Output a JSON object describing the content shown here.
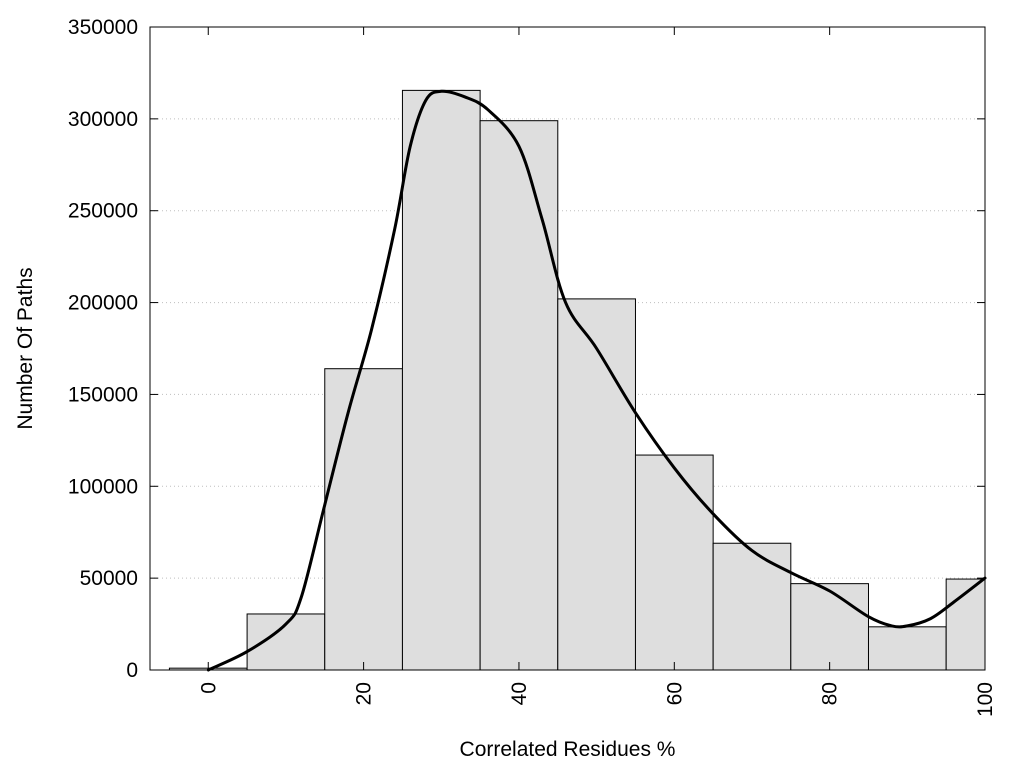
{
  "chart_data": {
    "type": "bar",
    "subtype": "histogram-with-density-curve",
    "title": "",
    "xlabel": "Correlated Residues %",
    "ylabel": "Number Of Paths",
    "xlim": [
      -7.5,
      100
    ],
    "ylim": [
      0,
      350000
    ],
    "x_ticks": [
      0,
      20,
      40,
      60,
      80,
      100
    ],
    "y_ticks": [
      0,
      50000,
      100000,
      150000,
      200000,
      250000,
      300000,
      350000
    ],
    "grid": "horizontal-dotted",
    "bar_color": "#dedede",
    "bar_edge_color": "#000000",
    "curve_color": "#000000",
    "bins": [
      {
        "left": -5,
        "right": 5,
        "value": 1000
      },
      {
        "left": 5,
        "right": 15,
        "value": 30500
      },
      {
        "left": 15,
        "right": 25,
        "value": 164000
      },
      {
        "left": 25,
        "right": 35,
        "value": 315500
      },
      {
        "left": 35,
        "right": 45,
        "value": 299000
      },
      {
        "left": 45,
        "right": 55,
        "value": 202000
      },
      {
        "left": 55,
        "right": 65,
        "value": 117000
      },
      {
        "left": 65,
        "right": 75,
        "value": 69000
      },
      {
        "left": 75,
        "right": 85,
        "value": 47000
      },
      {
        "left": 85,
        "right": 95,
        "value": 23500
      },
      {
        "left": 95,
        "right": 105,
        "value": 49500
      }
    ],
    "density_curve": {
      "x": [
        0,
        5,
        10,
        12,
        15,
        18,
        21,
        24,
        26,
        28,
        30,
        33,
        36,
        40,
        43,
        46,
        50,
        55,
        60,
        65,
        70,
        75,
        80,
        85,
        88,
        90,
        93,
        96,
        100
      ],
      "y": [
        0,
        10000,
        25000,
        40000,
        90000,
        140000,
        185000,
        240000,
        285000,
        310000,
        315000,
        312000,
        305000,
        285000,
        245000,
        200000,
        175000,
        140000,
        110000,
        85000,
        65000,
        53000,
        43000,
        29000,
        24000,
        24000,
        28000,
        37000,
        50000
      ]
    }
  }
}
